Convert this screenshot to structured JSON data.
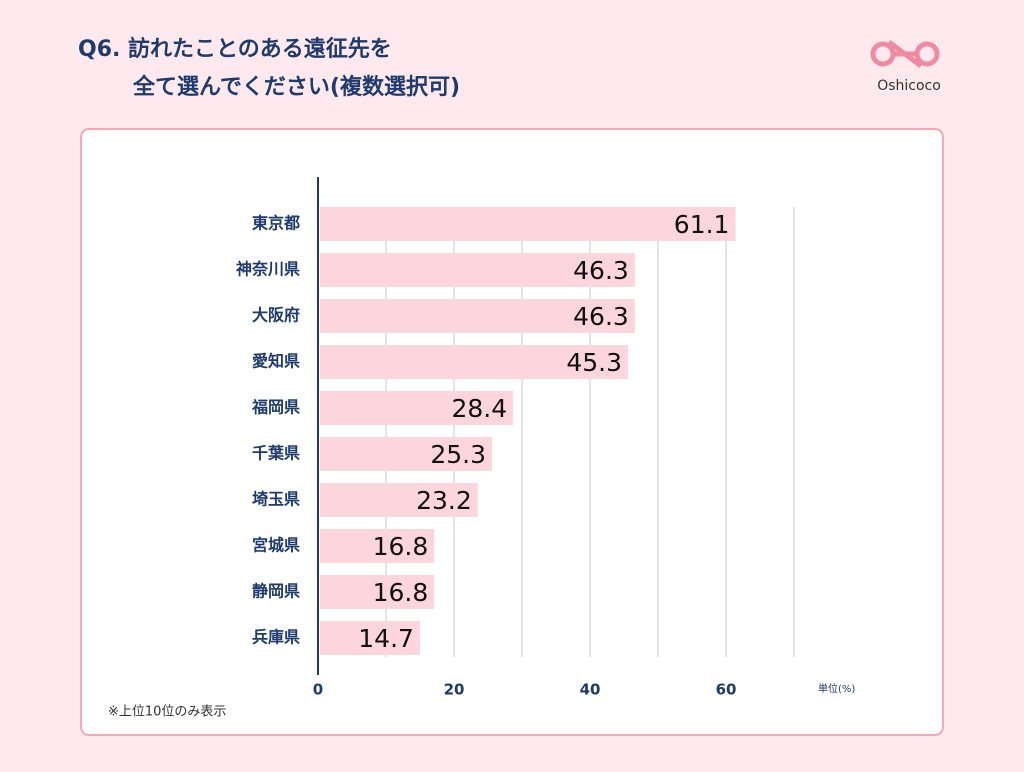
{
  "header": {
    "title_lines": [
      "Q6. 訪れたことのある遠征先を",
      "全て選んでください(複数選択可)"
    ],
    "logo": "Oshicoco"
  },
  "chart_data": {
    "type": "hbar",
    "categories": [
      "東京都",
      "神奈川県",
      "大阪府",
      "愛知県",
      "福岡県",
      "千葉県",
      "埼玉県",
      "宮城県",
      "静岡県",
      "兵庫県"
    ],
    "values": [
      61.1,
      46.3,
      46.3,
      45.3,
      28.4,
      25.3,
      23.2,
      16.8,
      16.8,
      14.7
    ],
    "color": "#fdd5dc",
    "xlim": [
      0,
      70
    ],
    "xticks": [
      0,
      20,
      40,
      60
    ],
    "minor_xticks": [
      10,
      30,
      50,
      70
    ],
    "grid": true,
    "unit_label": "単位(%)",
    "note": "※上位10位のみ表示"
  }
}
